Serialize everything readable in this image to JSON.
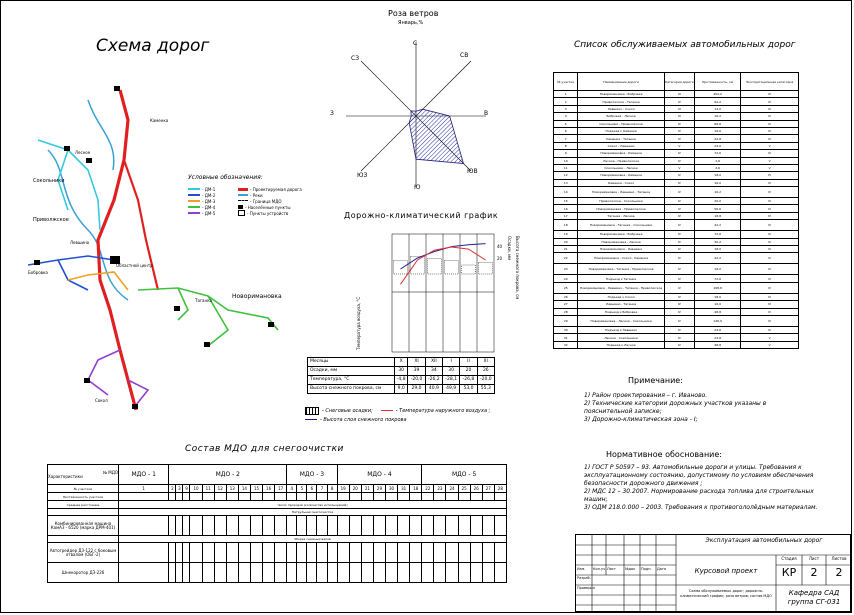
{
  "map": {
    "title": "Схема дорог",
    "legend_title": "Условные обозначения:",
    "legend_items": [
      "- ДМ-1",
      "- ДМ-2",
      "- ДМ-3",
      "- ДМ-4",
      "- ДМ-5"
    ],
    "legend_items_right": [
      "- Проектируемая дорога",
      "- Реки",
      "- Граница МДО",
      "- Населённые пункты",
      "- Пункты устройств"
    ],
    "places": [
      {
        "label": "Сокольники"
      },
      {
        "label": "Приволжское"
      },
      {
        "label": "Левшино"
      },
      {
        "label": "Бобровка"
      },
      {
        "label": "Областной центр"
      },
      {
        "label": "Новоримановка"
      },
      {
        "label": "Таганка"
      },
      {
        "label": "Каменка"
      },
      {
        "label": "Лесное"
      },
      {
        "label": "Сокол"
      }
    ]
  },
  "wind_rose": {
    "title": "Роза ветров",
    "subtitle": "Январь,%",
    "directions": {
      "n": "С",
      "ne": "СВ",
      "e": "В",
      "se": "ЮВ",
      "s": "Ю",
      "sw": "ЮЗ",
      "w": "З",
      "nw": "СЗ"
    },
    "values": {
      "n": 2,
      "ne": 4,
      "e": 14,
      "se": 28,
      "s": 18,
      "sw": 4,
      "w": 2,
      "nw": 3
    }
  },
  "climate_chart": {
    "title": "Дорожно-климатический график",
    "y_left_label": "Температура воздуха, °С",
    "y_right_label1": "Осадки, мм",
    "y_right_label2": "Высота снежного покрова, см",
    "right_ticks": [
      "40",
      "20"
    ],
    "table_rows": [
      {
        "label": "Месяцы",
        "values": [
          "X",
          "XI",
          "XII",
          "I",
          "II",
          "III"
        ]
      },
      {
        "label": "Осадки, мм",
        "values": [
          "30",
          "39",
          "34",
          "30",
          "20",
          "26"
        ]
      },
      {
        "label": "Температура, °С",
        "values": [
          "-4,8",
          "-20,0",
          "-26,2",
          "-28,1",
          "-26,8",
          "-20,0"
        ]
      },
      {
        "label": "Высота снежного покрова, см",
        "values": [
          "9,0",
          "29,0",
          "40,9",
          "49,9",
          "53,0",
          "55,3"
        ]
      }
    ],
    "legend": [
      "- Снеговые осадки;",
      "- Температура наружного воздуха ;",
      "- Высота слоя снежного покрова"
    ]
  },
  "roads_list": {
    "title": "Список обслуживаемых автомобильных дорог",
    "headers": [
      "№ участка",
      "Наименование дороги",
      "Категория дороги",
      "Протяженность, км",
      "Эксплуатационная категория"
    ],
    "rows": [
      [
        "1",
        "Новоримановка - Бобровка",
        "III",
        "452,2",
        "IV"
      ],
      [
        "2",
        "Приволжское - Таганка",
        "IV",
        "92,2",
        "IV"
      ],
      [
        "3",
        "Левшино - Сокол",
        "III",
        "14,0",
        "IV"
      ],
      [
        "4",
        "Бобровка - Лесное",
        "III",
        "16,2",
        "IV"
      ],
      [
        "5",
        "Сокольники - Приволжское",
        "IV",
        "66,6",
        "IV"
      ],
      [
        "6",
        "Подъезд к Каменке",
        "IV",
        "16,6",
        "IV"
      ],
      [
        "7",
        "Каменка - Таганка",
        "IV",
        "42,8",
        "IV"
      ],
      [
        "8",
        "Сокол - Левшино",
        "V",
        "24,0",
        "V"
      ],
      [
        "9",
        "Новоримановка - Каменка",
        "IV",
        "72,6",
        "IV"
      ],
      [
        "10",
        "Лесное - Приволжское",
        "IV",
        "1,6",
        "V"
      ],
      [
        "11",
        "Сокольники - Лесное",
        "V",
        "2,6",
        "V"
      ],
      [
        "12",
        "Новоримановка - Каменка",
        "IV",
        "18,0",
        "IV"
      ],
      [
        "13",
        "Каменка - Сокол",
        "IV",
        "16,0",
        "IV"
      ],
      [
        "14",
        "Новоримановка - Левшино - Таганка",
        "IV",
        "16,2",
        "IV"
      ],
      [
        "15",
        "Приволжское - Сокольники",
        "IV",
        "20,0",
        "IV"
      ],
      [
        "16",
        "Новоримановка - Приволжское",
        "IV",
        "56,6",
        "IV"
      ],
      [
        "17",
        "Таганка - Лесное",
        "IV",
        "18,8",
        "IV"
      ],
      [
        "18",
        "Новоримановка - Таганка - Сокольники",
        "IV",
        "42,2",
        "IV"
      ],
      [
        "19",
        "Новоримановка - Бобровка",
        "IV",
        "72,6",
        "IV"
      ],
      [
        "20",
        "Новоримановка - Лесное",
        "IV",
        "30,2",
        "IV"
      ],
      [
        "21",
        "Новоримановка - Левшино",
        "IV",
        "18,0",
        "IV"
      ],
      [
        "22",
        "Новоримановка - Сокол - Каменка",
        "IV",
        "42,2",
        "IV"
      ],
      [
        "23",
        "Новоримановка - Таганка - Приволжское",
        "IV",
        "18,0",
        "IV"
      ],
      [
        "24",
        "Подъезд к Таганке",
        "IV",
        "72,6",
        "IV"
      ],
      [
        "25",
        "Новоримановка - Левшино - Таганка - Приволжское",
        "IV",
        "168,8",
        "IV"
      ],
      [
        "26",
        "Подъезд к Сокол",
        "IV",
        "18,0",
        "IV"
      ],
      [
        "27",
        "Левшино - Таганка",
        "IV",
        "16,0",
        "IV"
      ],
      [
        "28",
        "Подъезд к Бобровке",
        "IV",
        "48,8",
        "IV"
      ],
      [
        "29",
        "Новоримановка - Лесное - Сокольники",
        "IV",
        "126,9",
        "IV"
      ],
      [
        "30",
        "Подъезд к Левшино",
        "IV",
        "24,6",
        "IV"
      ],
      [
        "31",
        "Лесное - Сокольники",
        "IV",
        "24,8",
        "V"
      ],
      [
        "32",
        "Подъезд к Лесное",
        "IV",
        "48,8",
        "V"
      ]
    ]
  },
  "notes": {
    "title": "Примечание:",
    "items": [
      "1) Район проектирования – г. Иваново.",
      "2) Технические категории дорожных участков указаны в пояснительной записке;",
      "3) Дорожно-климатическая зона - I;"
    ]
  },
  "norms": {
    "title": "Нормативное обоснование:",
    "items": [
      "1) ГОСТ Р 50597 – 93. Автомобильные дороги и улицы. Требования к эксплуатационному состоянию, допустимому по условиям обеспечения безопасности дорожного движения ;",
      "2) МДС 12 – 30.2007. Нормирование расхода топлива для строительных машин;",
      "3) ОДМ 218.0.000 – 2003. Требования к противогололёдным материалам."
    ]
  },
  "mdo": {
    "title": "Состав МДО для снегоочистки",
    "header_left": "№ МДО",
    "header_left2": "Характеристики",
    "groups": [
      "МДО - 1",
      "МДО - 2",
      "МДО - 3",
      "МДО - 4",
      "МДО - 5"
    ],
    "row_labels": [
      "№ участков",
      "Протяженность участков",
      "Среднее расстояние",
      "Комбинированная машина КамАЗ - 6520 (марка ДРМ-401)",
      "Автогрейдер ДЗ-122 с боковым отвалом (ОБГ-2)",
      "Шнекоротор ДЗ-226"
    ],
    "section1": "Число проходов (количество используемой)",
    "section2": "Патрульная снегоочистка",
    "section3": "Уборка снежных валов",
    "site_numbers": [
      "1",
      "2",
      "3",
      "9",
      "10",
      "11",
      "12",
      "13",
      "14",
      "15",
      "16",
      "17",
      "4",
      "5",
      "6",
      "7",
      "8",
      "19",
      "20",
      "21",
      "29",
      "30",
      "31",
      "18",
      "22",
      "23",
      "24",
      "25",
      "26",
      "27",
      "28"
    ]
  },
  "stamp": {
    "project_title": "Эксплуатация автомобильных дорог",
    "doc_title": "Курсовой проект",
    "stage_label": "Стадия",
    "sheet_label": "Лист",
    "sheets_label": "Листов",
    "stage": "КР",
    "sheet": "2",
    "sheets": "2",
    "drawing_desc": "Схема обслуживаемых дорог; дорожно-климатический график; роза ветров; состав МДО",
    "org": "Кафедра САД группа СГ-031",
    "row_labels": [
      "Разраб.",
      "Проверил"
    ],
    "col_labels": [
      "Изм.",
      "Кол.уч",
      "Лист",
      "№док",
      "Подп.",
      "Дата"
    ]
  }
}
